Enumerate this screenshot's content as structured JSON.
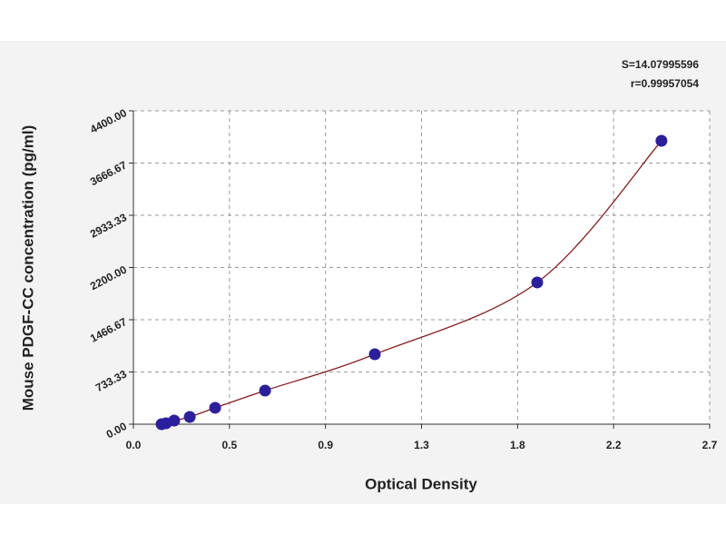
{
  "chart_data": {
    "type": "scatter",
    "x_label": "Optical Density",
    "y_label": "Mouse PDGF-CC concentration (pg/ml)",
    "annotations": [
      "S=14.07995596",
      "r=0.99957054"
    ],
    "x": [
      0.132,
      0.153,
      0.191,
      0.264,
      0.383,
      0.617,
      1.131,
      1.892,
      2.474
    ],
    "series": [
      {
        "color": "#2b1f9e",
        "values": [
          0,
          13,
          51,
          102,
          230,
          472,
          982,
          1990,
          3979
        ]
      }
    ],
    "fit_color": "#8b1a1a",
    "xlim": [
      0,
      2.7
    ],
    "xticks": [
      {
        "value": 0,
        "label": "0.0"
      },
      {
        "value": 0.45,
        "label": "0.5"
      },
      0.9,
      {
        "value": 1.35,
        "label": "1.3"
      },
      1.8,
      {
        "value": 2.25,
        "label": "2.2"
      },
      2.7
    ],
    "ylim": [
      0,
      4400
    ],
    "yticks": [
      {
        "value": 0,
        "label": "0.00"
      },
      {
        "value": 733.33,
        "label": "733.33"
      },
      {
        "value": 1466.67,
        "label": "1466.67"
      },
      {
        "value": 2200,
        "label": "2200.00"
      },
      {
        "value": 2933.33,
        "label": "2933.33"
      },
      {
        "value": 3666.67,
        "label": "3666.67"
      },
      {
        "value": 4400,
        "label": "4400.00"
      }
    ],
    "grid": true
  }
}
